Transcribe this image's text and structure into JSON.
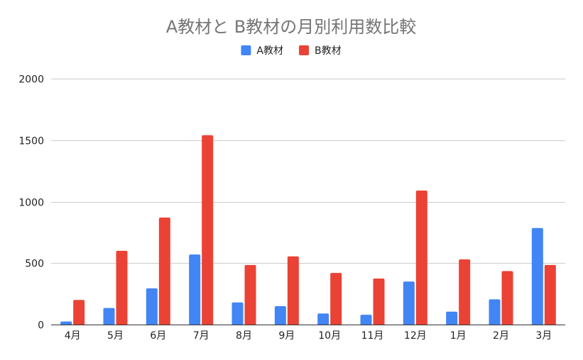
{
  "chart_data": {
    "type": "bar",
    "title": "A教材と B教材の月別利用数比較",
    "xlabel": "",
    "ylabel": "",
    "categories": [
      "4月",
      "5月",
      "6月",
      "7月",
      "8月",
      "9月",
      "10月",
      "11月",
      "12月",
      "1月",
      "2月",
      "3月"
    ],
    "series": [
      {
        "name": "A教材",
        "color": "#4285f4",
        "values": [
          25,
          135,
          295,
          570,
          180,
          150,
          90,
          80,
          350,
          105,
          205,
          785
        ]
      },
      {
        "name": "B教材",
        "color": "#ea4335",
        "values": [
          200,
          600,
          870,
          1540,
          485,
          555,
          420,
          375,
          1090,
          530,
          435,
          485
        ]
      }
    ],
    "ylim": [
      0,
      2000
    ],
    "yticks": [
      0,
      500,
      1000,
      1500,
      2000
    ],
    "grid": true,
    "legend_position": "top-center"
  }
}
